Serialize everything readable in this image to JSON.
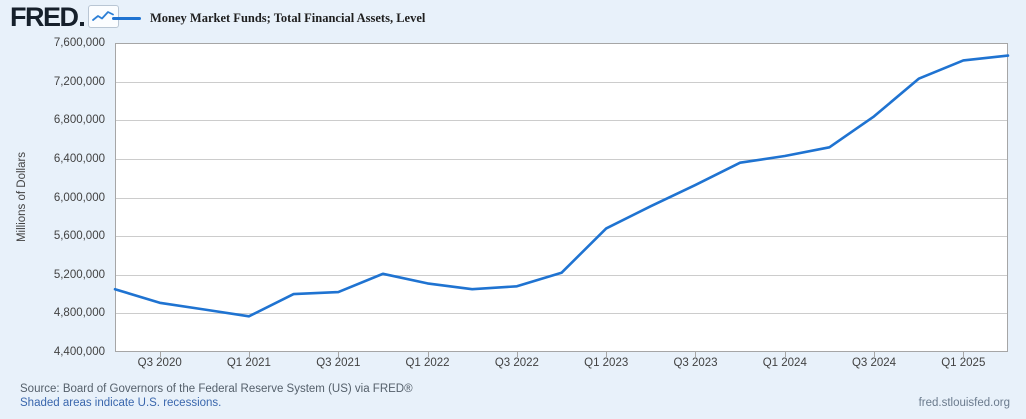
{
  "header": {
    "logo_text": "FRED",
    "legend": {
      "series_label": "Money Market Funds; Total Financial Assets, Level"
    }
  },
  "chart_data": {
    "type": "line",
    "title": "Money Market Funds; Total Financial Assets, Level",
    "ylabel": "Millions of Dollars",
    "ylim": [
      4400000,
      7600000
    ],
    "y_tick_step": 400000,
    "y_tick_labels": [
      "7,600,000",
      "7,200,000",
      "6,800,000",
      "6,400,000",
      "6,000,000",
      "5,600,000",
      "5,200,000",
      "4,800,000",
      "4,400,000"
    ],
    "categories": [
      "Q2 2020",
      "Q3 2020",
      "Q4 2020",
      "Q1 2021",
      "Q2 2021",
      "Q3 2021",
      "Q4 2021",
      "Q1 2022",
      "Q2 2022",
      "Q3 2022",
      "Q4 2022",
      "Q1 2023",
      "Q2 2023",
      "Q3 2023",
      "Q4 2023",
      "Q1 2024",
      "Q2 2024",
      "Q3 2024",
      "Q4 2024",
      "Q1 2025",
      "Q2 2025"
    ],
    "values": [
      5050000,
      4910000,
      4840000,
      4770000,
      5000000,
      5020000,
      5210000,
      5110000,
      5050000,
      5080000,
      5220000,
      5680000,
      5910000,
      6130000,
      6360000,
      6430000,
      6520000,
      6840000,
      7230000,
      7420000,
      7470000
    ],
    "x_tick_labels": [
      "Q3 2020",
      "Q1 2021",
      "Q3 2021",
      "Q1 2022",
      "Q3 2022",
      "Q1 2023",
      "Q3 2023",
      "Q1 2024",
      "Q3 2024",
      "Q1 2025"
    ],
    "grid": true,
    "legend_position": "top-left",
    "line_color": "#1f73d1"
  },
  "footer": {
    "source_line": "Source: Board of Governors of the Federal Reserve System (US) via FRED®",
    "note_line": "Shaded areas indicate U.S. recessions.",
    "site_url": "fred.stlouisfed.org"
  },
  "colors": {
    "page_background": "#e8f1fa",
    "plot_background": "#ffffff",
    "line": "#1f73d1",
    "grid": "#cccccc",
    "plot_border": "#a6a6a6",
    "axis_text": "#424242",
    "source_text": "#55606b",
    "link_text": "#3a67ad",
    "site_text": "#6b7b8d",
    "logo": "#16202b"
  }
}
